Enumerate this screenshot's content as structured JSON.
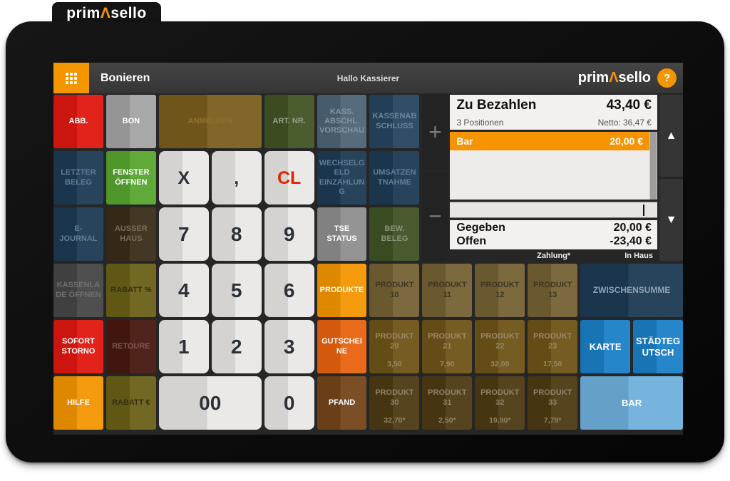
{
  "branding": {
    "logo_prefix": "prim",
    "logo_accent": "Λ",
    "logo_suffix": "sello",
    "help": "?"
  },
  "header": {
    "title": "Bonieren",
    "greeting": "Hallo Kassierer"
  },
  "icons": {
    "menu": "grid-dots",
    "plus": "+",
    "minus": "−",
    "up": "▲",
    "down": "▼"
  },
  "colors": {
    "accent_orange": "#f49600",
    "alert_red": "#e0170f",
    "confirm_green": "#57a52f",
    "action_blue": "#1b80c7",
    "cash_light_blue": "#6fb0dc",
    "selected_row_orange": "#f59300"
  },
  "payment": {
    "title": "Zu Bezahlen",
    "total": "43,40 €",
    "positions": "3 Positionen",
    "netto": "Netto: 36,47 €",
    "entries": [
      {
        "label": "Bar",
        "amount": "20,00 €"
      }
    ],
    "input_value": "",
    "given_label": "Gegeben",
    "given_value": "20,00 €",
    "open_label": "Offen",
    "open_value": "-23,40 €",
    "tab_zahlung": "Zahlung*",
    "tab_inhaus": "In Haus"
  },
  "buttons": {
    "abb": "ABB.",
    "bon": "BON",
    "anmelden": "ANMELDEN",
    "art_nr": "ART. NR.",
    "kass_abschl_vorschau": "KASS. ABSCHL. VORSCHAU",
    "kassenabschluss": "KASSENABSCHLUSS",
    "letzter_beleg": "LETZTER BELEG",
    "fenster_oeffnen": "FENSTER ÖFFNEN",
    "key_x": "X",
    "key_comma": ",",
    "key_cl": "CL",
    "wechselgeld_einzahlung": "WECHSELGELD EINZAHLUNG",
    "umsatzentnahme": "UMSATZENTNAHME",
    "e_journal": "E-JOURNAL",
    "ausser_haus": "AUSSER HAUS",
    "key_7": "7",
    "key_8": "8",
    "key_9": "9",
    "tse_status": "TSE STATUS",
    "bew_beleg": "BEW. BELEG",
    "kassenlade_oeffnen": "KASSENLADE ÖFFNEN",
    "rabatt_prozent": "RABATT %",
    "key_4": "4",
    "key_5": "5",
    "key_6": "6",
    "produkte": "PRODUKTE",
    "sofort_storno": "SOFORT STORNO",
    "retoure": "RETOURE",
    "key_1": "1",
    "key_2": "2",
    "key_3": "3",
    "gutscheine": "GUTSCHEINE",
    "hilfe": "HILFE",
    "rabatt_euro": "RABATT €",
    "key_00": "00",
    "key_0": "0",
    "pfand": "PFAND",
    "zwischensumme": "ZWISCHENSUMME",
    "karte": "KARTE",
    "staedtegutsch": "STÄDTEGUTSCH",
    "bar": "BAR"
  },
  "products": {
    "p10": {
      "label": "PRODUKT 10",
      "price": ""
    },
    "p11": {
      "label": "PRODUKT 11",
      "price": ""
    },
    "p12": {
      "label": "PRODUKT 12",
      "price": ""
    },
    "p13": {
      "label": "PRODUKT 13",
      "price": ""
    },
    "p20": {
      "label": "PRODUKT 20",
      "price": "3,50"
    },
    "p21": {
      "label": "PRODUKT 21",
      "price": "7,90"
    },
    "p22": {
      "label": "PRODUKT 22",
      "price": "32,00"
    },
    "p23": {
      "label": "PRODUKT 23",
      "price": "17,50"
    },
    "p30": {
      "label": "PRODUKT 30",
      "price": "32,70*"
    },
    "p31": {
      "label": "PRODUKT 31",
      "price": "2,50*"
    },
    "p32": {
      "label": "PRODUKT 32",
      "price": "19,90*"
    },
    "p33": {
      "label": "PRODUKT 33",
      "price": "7,79*"
    }
  }
}
